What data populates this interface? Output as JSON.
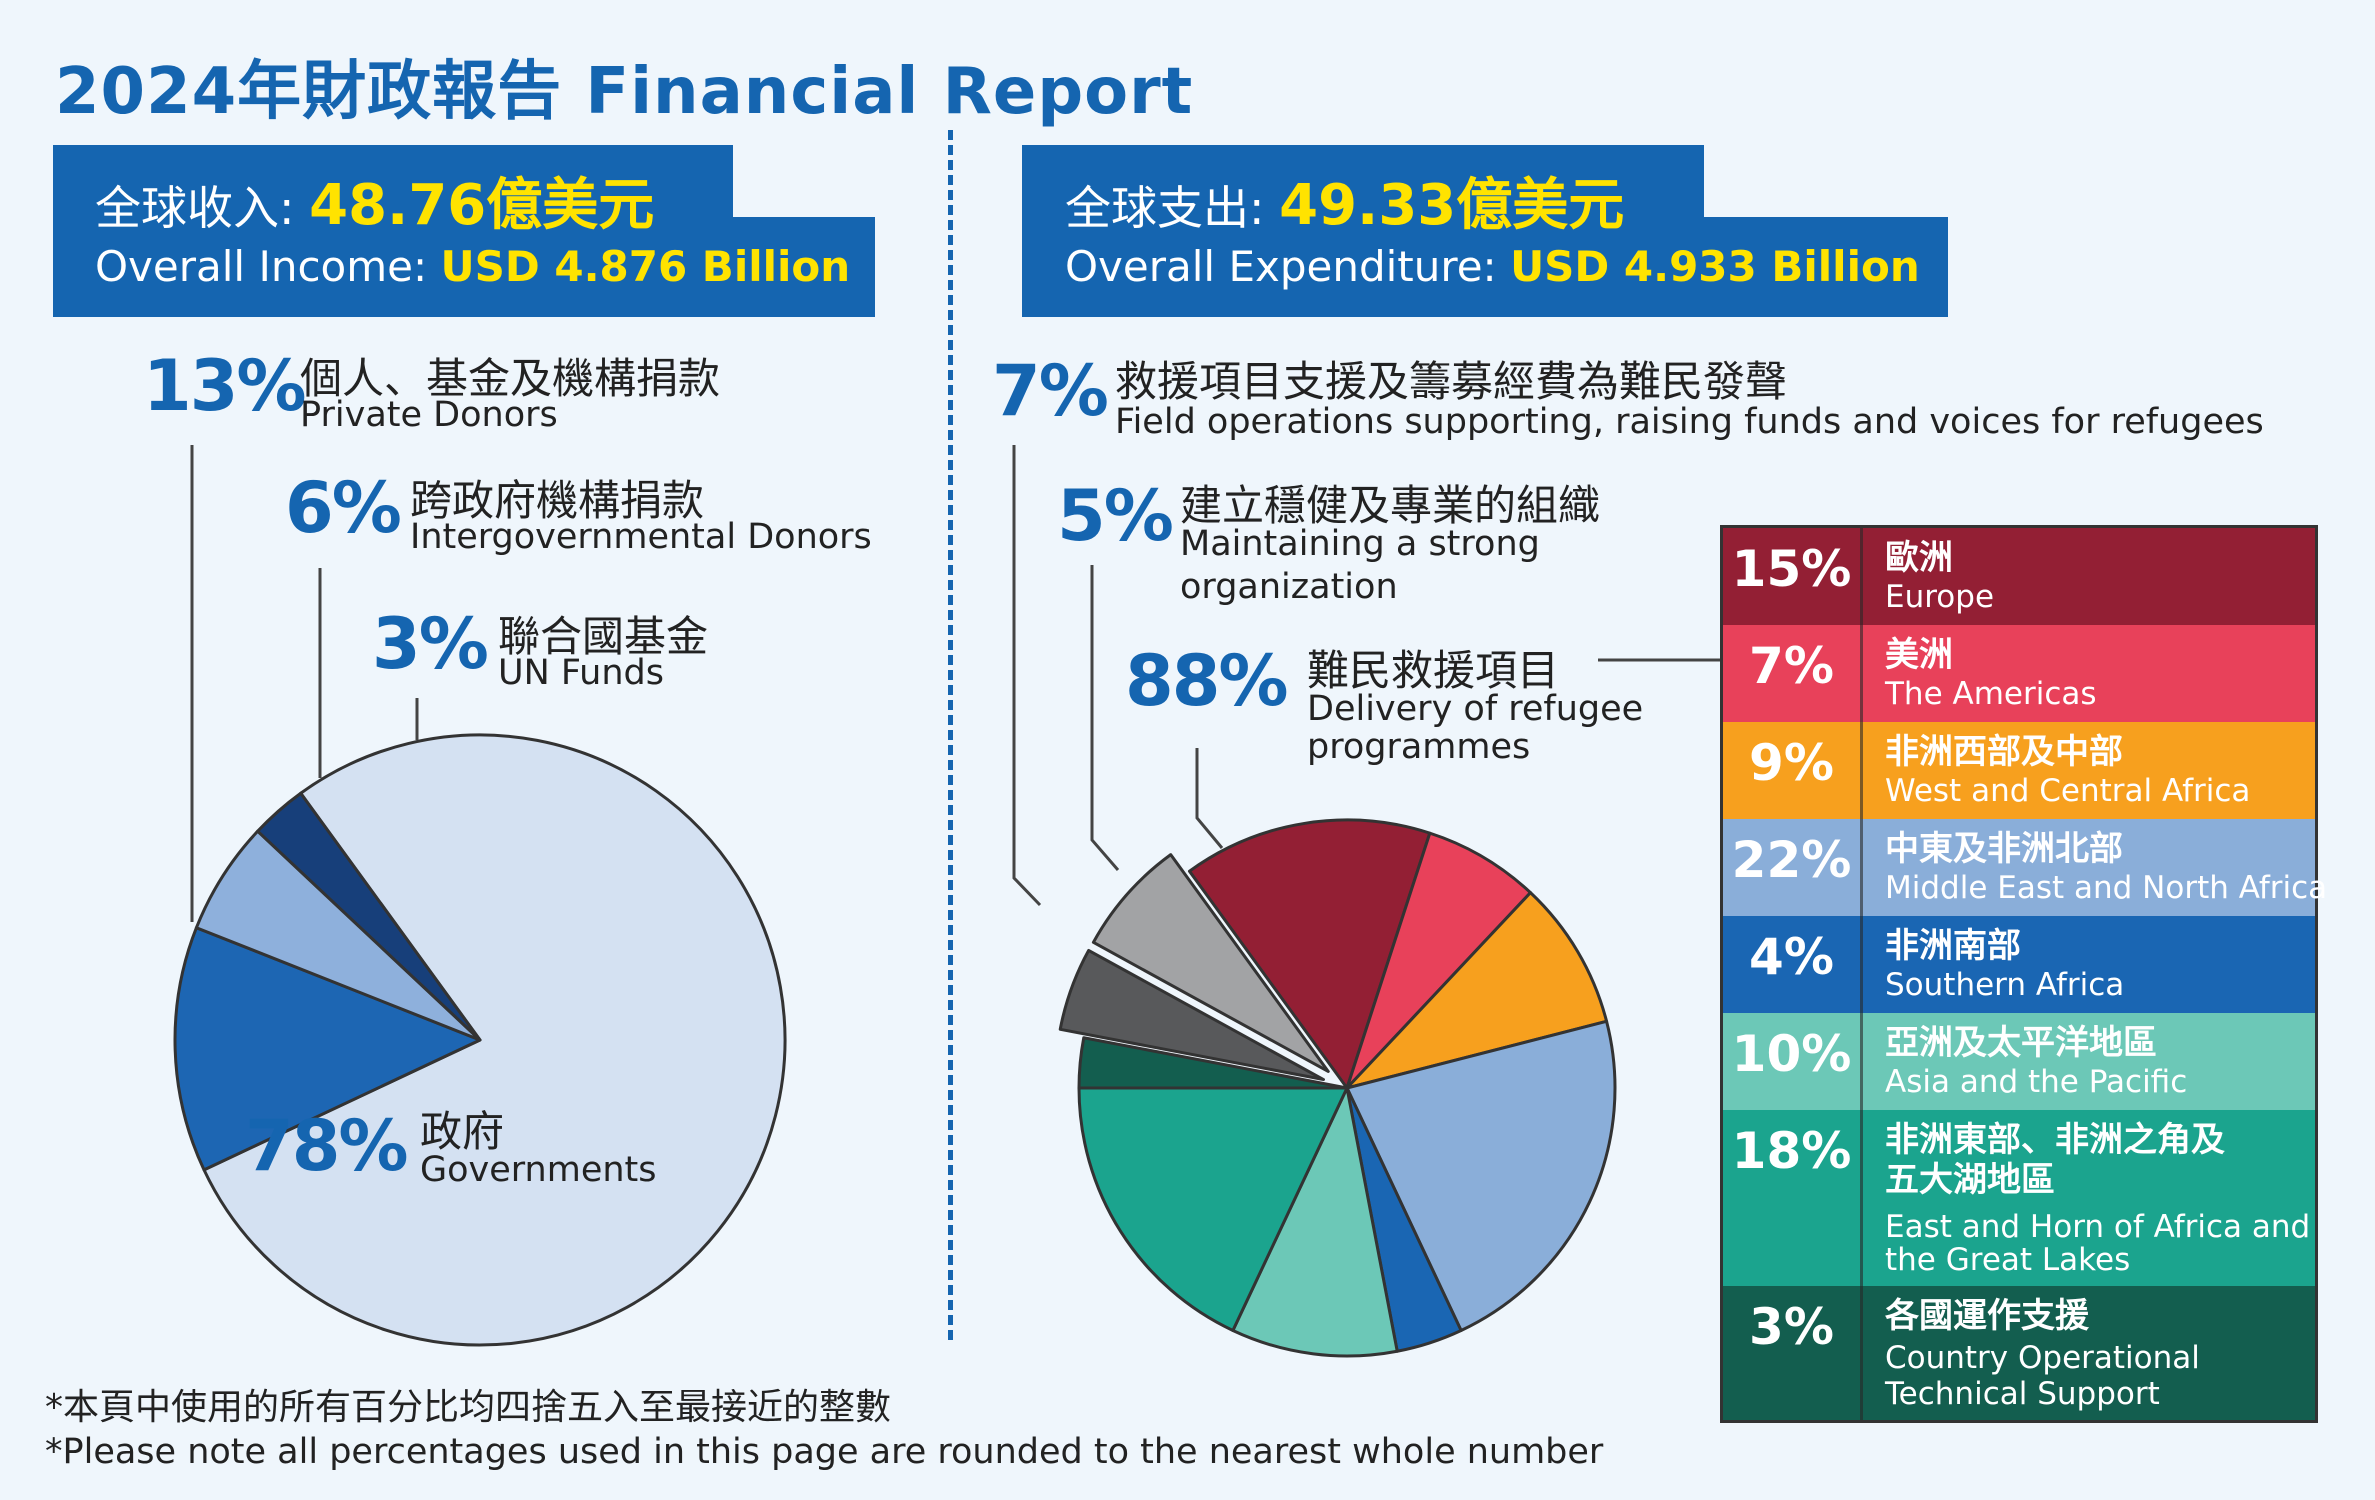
{
  "title": "2024年財政報告 Financial Report",
  "income_box": {
    "label_zh": "全球收入: ",
    "value_zh": "48.76億美元",
    "label_en": "Overall Income: ",
    "value_en": "USD 4.876 Billion"
  },
  "expenditure_box": {
    "label_zh": "全球支出: ",
    "value_zh": "49.33億美元",
    "label_en": "Overall Expenditure: ",
    "value_en": "USD 4.933 Billion"
  },
  "income_labels": [
    {
      "pct": "13%",
      "zh": "個人、基金及機構捐款",
      "en": "Private Donors"
    },
    {
      "pct": "6%",
      "zh": "跨政府機構捐款",
      "en": "Intergovernmental Donors"
    },
    {
      "pct": "3%",
      "zh": "聯合國基金",
      "en": "UN Funds"
    },
    {
      "pct": "78%",
      "zh": "政府",
      "en": "Governments"
    }
  ],
  "expenditure_labels": [
    {
      "pct": "7%",
      "zh": "救援項目支援及籌募經費為難民發聲",
      "en": "Field operations supporting, raising funds and voices for refugees"
    },
    {
      "pct": "5%",
      "zh": "建立穩健及專業的組織",
      "en1": "Maintaining a strong",
      "en2": "organization"
    },
    {
      "pct": "88%",
      "zh": "難民救援項目",
      "en1": "Delivery of refugee",
      "en2": "programmes"
    }
  ],
  "legend": [
    {
      "pct": "15%",
      "zh": "歐洲",
      "en": "Europe",
      "color": "#931f34"
    },
    {
      "pct": "7%",
      "zh": "美洲",
      "en": "The Americas",
      "color": "#e8415a"
    },
    {
      "pct": "9%",
      "zh": "非洲西部及中部",
      "en": "West and Central Africa",
      "color": "#f7a01e"
    },
    {
      "pct": "22%",
      "zh": "中東及非洲北部",
      "en": "Middle East and North Africa",
      "color": "#8aaed9"
    },
    {
      "pct": "4%",
      "zh": "非洲南部",
      "en": "Southern Africa",
      "color": "#1a66b3"
    },
    {
      "pct": "10%",
      "zh": "亞洲及太平洋地區",
      "en": "Asia and the Pacific",
      "color": "#6cc8b7"
    },
    {
      "pct": "18%",
      "zh1": "非洲東部、非洲之角及",
      "zh2": "五大湖地區",
      "en1": "East and Horn of Africa and",
      "en2": "the Great Lakes",
      "color": "#1ba48e"
    },
    {
      "pct": "3%",
      "zh": "各國運作支援",
      "en1": "Country Operational",
      "en2": "Technical Support",
      "color": "#135e4f"
    }
  ],
  "chart_data": [
    {
      "type": "pie",
      "title": "全球收入 Overall Income",
      "categories": [
        "Governments",
        "Private Donors",
        "Intergovernmental Donors",
        "UN Funds"
      ],
      "values": [
        78,
        13,
        6,
        3
      ],
      "colors": [
        "#d4e1f2",
        "#1d66b3",
        "#8eb0dc",
        "#173f7a"
      ]
    },
    {
      "type": "pie",
      "title": "全球支出 Overall Expenditure",
      "categories": [
        "Europe",
        "The Americas",
        "West and Central Africa",
        "Middle East and North Africa",
        "Southern Africa",
        "Asia and the Pacific",
        "East and Horn of Africa and the Great Lakes",
        "Country Operational Technical Support",
        "Maintaining a strong organization",
        "Field operations supporting, raising funds and voices for refugees"
      ],
      "values": [
        15,
        7,
        9,
        22,
        4,
        10,
        18,
        3,
        5,
        7
      ],
      "colors": [
        "#931f34",
        "#e8415a",
        "#f7a01e",
        "#8aaed9",
        "#1a66b3",
        "#6cc8b7",
        "#1ba48e",
        "#135e4f",
        "#58595b",
        "#a2a3a5"
      ],
      "exploded": [
        "Maintaining a strong organization",
        "Field operations supporting, raising funds and voices for refugees"
      ]
    }
  ],
  "footnotes": [
    "*本頁中使用的所有百分比均四捨五入至最接近的整數",
    "*Please note all percentages used in this page are rounded to the nearest whole number"
  ]
}
